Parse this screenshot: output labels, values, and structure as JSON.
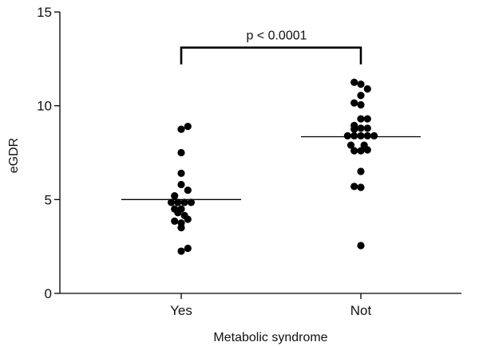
{
  "chart_data": {
    "type": "scatter",
    "xlabel": "Metabolic syndrome",
    "ylabel": "eGDR",
    "categories": [
      "Yes",
      "Not"
    ],
    "ylim": [
      0,
      15
    ],
    "yticks": [
      0,
      5,
      10,
      15
    ],
    "grid": false,
    "series": [
      {
        "category": "Yes",
        "median": 5.0,
        "points": [
          {
            "dx": 0.0,
            "y": 8.75
          },
          {
            "dx": 1.0,
            "y": 8.9
          },
          {
            "dx": 0.0,
            "y": 7.5
          },
          {
            "dx": 0.0,
            "y": 6.4
          },
          {
            "dx": 0.0,
            "y": 5.8
          },
          {
            "dx": 1.0,
            "y": 5.5
          },
          {
            "dx": -1.0,
            "y": 5.2
          },
          {
            "dx": -1.5,
            "y": 4.85
          },
          {
            "dx": -0.5,
            "y": 4.85
          },
          {
            "dx": 0.5,
            "y": 4.85
          },
          {
            "dx": 1.5,
            "y": 4.85
          },
          {
            "dx": -1.0,
            "y": 4.5
          },
          {
            "dx": 0.0,
            "y": 4.5
          },
          {
            "dx": -0.5,
            "y": 4.3
          },
          {
            "dx": 0.5,
            "y": 4.15
          },
          {
            "dx": -1.0,
            "y": 3.85
          },
          {
            "dx": 1.0,
            "y": 3.95
          },
          {
            "dx": 0.0,
            "y": 3.75
          },
          {
            "dx": 0.0,
            "y": 3.5
          },
          {
            "dx": 1.0,
            "y": 2.4
          },
          {
            "dx": 0.0,
            "y": 2.25
          }
        ]
      },
      {
        "category": "Not",
        "median": 8.35,
        "points": [
          {
            "dx": -1.0,
            "y": 11.25
          },
          {
            "dx": 0.0,
            "y": 11.15
          },
          {
            "dx": 1.0,
            "y": 10.9
          },
          {
            "dx": 0.0,
            "y": 10.55
          },
          {
            "dx": -1.0,
            "y": 10.15
          },
          {
            "dx": 0.0,
            "y": 10.05
          },
          {
            "dx": 0.0,
            "y": 9.3
          },
          {
            "dx": 1.0,
            "y": 9.3
          },
          {
            "dx": -1.0,
            "y": 8.95
          },
          {
            "dx": 0.0,
            "y": 8.8
          },
          {
            "dx": 1.0,
            "y": 8.8
          },
          {
            "dx": -1.0,
            "y": 8.75
          },
          {
            "dx": -2.0,
            "y": 8.4
          },
          {
            "dx": -1.0,
            "y": 8.4
          },
          {
            "dx": 0.0,
            "y": 8.4
          },
          {
            "dx": 1.0,
            "y": 8.4
          },
          {
            "dx": 2.0,
            "y": 8.4
          },
          {
            "dx": -1.5,
            "y": 7.9
          },
          {
            "dx": 0.5,
            "y": 7.9
          },
          {
            "dx": -1.0,
            "y": 7.6
          },
          {
            "dx": 0.0,
            "y": 7.6
          },
          {
            "dx": 1.0,
            "y": 7.65
          },
          {
            "dx": 0.0,
            "y": 6.5
          },
          {
            "dx": -1.0,
            "y": 5.7
          },
          {
            "dx": 0.0,
            "y": 5.65
          },
          {
            "dx": 0.0,
            "y": 2.55
          }
        ]
      }
    ],
    "annotation": {
      "text": "p < 0.0001",
      "between": [
        "Yes",
        "Not"
      ],
      "y": 13.1
    },
    "marker_color": "#000000"
  }
}
